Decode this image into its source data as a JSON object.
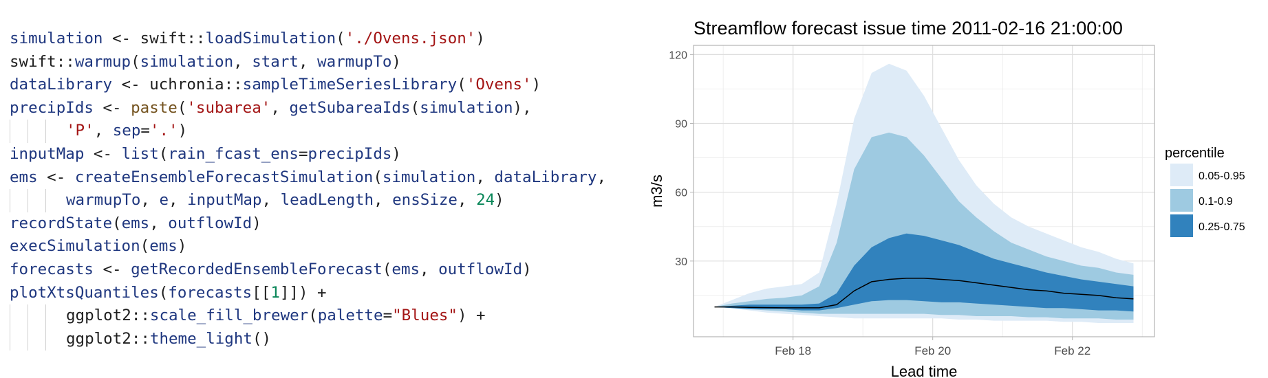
{
  "code": {
    "lines": [
      {
        "indent": false,
        "tokens": [
          {
            "t": "simulation",
            "c": "id"
          },
          {
            "t": " <- ",
            "c": "op"
          },
          {
            "t": "swift",
            "c": "pkg"
          },
          {
            "t": "::",
            "c": "op"
          },
          {
            "t": "loadSimulation",
            "c": "id"
          },
          {
            "t": "(",
            "c": "punc"
          },
          {
            "t": "'./Ovens.json'",
            "c": "str"
          },
          {
            "t": ")",
            "c": "punc"
          }
        ]
      },
      {
        "indent": false,
        "tokens": [
          {
            "t": "swift",
            "c": "pkg"
          },
          {
            "t": "::",
            "c": "op"
          },
          {
            "t": "warmup",
            "c": "id"
          },
          {
            "t": "(",
            "c": "punc"
          },
          {
            "t": "simulation",
            "c": "id"
          },
          {
            "t": ", ",
            "c": "punc"
          },
          {
            "t": "start",
            "c": "id"
          },
          {
            "t": ", ",
            "c": "punc"
          },
          {
            "t": "warmupTo",
            "c": "id"
          },
          {
            "t": ")",
            "c": "punc"
          }
        ]
      },
      {
        "indent": false,
        "tokens": [
          {
            "t": "dataLibrary",
            "c": "id"
          },
          {
            "t": " <- ",
            "c": "op"
          },
          {
            "t": "uchronia",
            "c": "pkg"
          },
          {
            "t": "::",
            "c": "op"
          },
          {
            "t": "sampleTimeSeriesLibrary",
            "c": "id"
          },
          {
            "t": "(",
            "c": "punc"
          },
          {
            "t": "'Ovens'",
            "c": "str"
          },
          {
            "t": ")",
            "c": "punc"
          }
        ]
      },
      {
        "indent": false,
        "tokens": [
          {
            "t": "precipIds",
            "c": "id"
          },
          {
            "t": " <- ",
            "c": "op"
          },
          {
            "t": "paste",
            "c": "fn"
          },
          {
            "t": "(",
            "c": "punc"
          },
          {
            "t": "'subarea'",
            "c": "str"
          },
          {
            "t": ", ",
            "c": "punc"
          },
          {
            "t": "getSubareaIds",
            "c": "id"
          },
          {
            "t": "(",
            "c": "punc"
          },
          {
            "t": "simulation",
            "c": "id"
          },
          {
            "t": "),",
            "c": "punc"
          }
        ]
      },
      {
        "indent": true,
        "tokens": [
          {
            "t": "'P'",
            "c": "str"
          },
          {
            "t": ", ",
            "c": "punc"
          },
          {
            "t": "sep",
            "c": "id"
          },
          {
            "t": "=",
            "c": "op"
          },
          {
            "t": "'.'",
            "c": "str"
          },
          {
            "t": ")",
            "c": "punc"
          }
        ]
      },
      {
        "indent": false,
        "tokens": [
          {
            "t": "inputMap",
            "c": "id"
          },
          {
            "t": " <- ",
            "c": "op"
          },
          {
            "t": "list",
            "c": "id"
          },
          {
            "t": "(",
            "c": "punc"
          },
          {
            "t": "rain_fcast_ens",
            "c": "id"
          },
          {
            "t": "=",
            "c": "op"
          },
          {
            "t": "precipIds",
            "c": "id"
          },
          {
            "t": ")",
            "c": "punc"
          }
        ]
      },
      {
        "indent": false,
        "tokens": [
          {
            "t": "ems",
            "c": "id"
          },
          {
            "t": " <- ",
            "c": "op"
          },
          {
            "t": "createEnsembleForecastSimulation",
            "c": "id"
          },
          {
            "t": "(",
            "c": "punc"
          },
          {
            "t": "simulation",
            "c": "id"
          },
          {
            "t": ", ",
            "c": "punc"
          },
          {
            "t": "dataLibrary",
            "c": "id"
          },
          {
            "t": ",",
            "c": "punc"
          }
        ]
      },
      {
        "indent": true,
        "tokens": [
          {
            "t": "warmupTo",
            "c": "id"
          },
          {
            "t": ", ",
            "c": "punc"
          },
          {
            "t": "e",
            "c": "id"
          },
          {
            "t": ", ",
            "c": "punc"
          },
          {
            "t": "inputMap",
            "c": "id"
          },
          {
            "t": ", ",
            "c": "punc"
          },
          {
            "t": "leadLength",
            "c": "id"
          },
          {
            "t": ", ",
            "c": "punc"
          },
          {
            "t": "ensSize",
            "c": "id"
          },
          {
            "t": ", ",
            "c": "punc"
          },
          {
            "t": "24",
            "c": "num"
          },
          {
            "t": ")",
            "c": "punc"
          }
        ]
      },
      {
        "indent": false,
        "tokens": [
          {
            "t": "recordState",
            "c": "id"
          },
          {
            "t": "(",
            "c": "punc"
          },
          {
            "t": "ems",
            "c": "id"
          },
          {
            "t": ", ",
            "c": "punc"
          },
          {
            "t": "outflowId",
            "c": "id"
          },
          {
            "t": ")",
            "c": "punc"
          }
        ]
      },
      {
        "indent": false,
        "tokens": [
          {
            "t": "execSimulation",
            "c": "id"
          },
          {
            "t": "(",
            "c": "punc"
          },
          {
            "t": "ems",
            "c": "id"
          },
          {
            "t": ")",
            "c": "punc"
          }
        ]
      },
      {
        "indent": false,
        "tokens": [
          {
            "t": "forecasts",
            "c": "id"
          },
          {
            "t": " <- ",
            "c": "op"
          },
          {
            "t": "getRecordedEnsembleForecast",
            "c": "id"
          },
          {
            "t": "(",
            "c": "punc"
          },
          {
            "t": "ems",
            "c": "id"
          },
          {
            "t": ", ",
            "c": "punc"
          },
          {
            "t": "outflowId",
            "c": "id"
          },
          {
            "t": ")",
            "c": "punc"
          }
        ]
      },
      {
        "indent": false,
        "tokens": [
          {
            "t": "plotXtsQuantiles",
            "c": "id"
          },
          {
            "t": "(",
            "c": "punc"
          },
          {
            "t": "forecasts",
            "c": "id"
          },
          {
            "t": "[[",
            "c": "punc"
          },
          {
            "t": "1",
            "c": "num"
          },
          {
            "t": "]])",
            "c": "punc"
          },
          {
            "t": " +",
            "c": "op"
          }
        ]
      },
      {
        "indent": true,
        "tokens": [
          {
            "t": "ggplot2",
            "c": "pkg"
          },
          {
            "t": "::",
            "c": "op"
          },
          {
            "t": "scale_fill_brewer",
            "c": "id"
          },
          {
            "t": "(",
            "c": "punc"
          },
          {
            "t": "palette",
            "c": "id"
          },
          {
            "t": "=",
            "c": "op"
          },
          {
            "t": "\"Blues\"",
            "c": "str"
          },
          {
            "t": ")",
            "c": "punc"
          },
          {
            "t": " +",
            "c": "op"
          }
        ]
      },
      {
        "indent": true,
        "tokens": [
          {
            "t": "ggplot2",
            "c": "pkg"
          },
          {
            "t": "::",
            "c": "op"
          },
          {
            "t": "theme_light",
            "c": "id"
          },
          {
            "t": "()",
            "c": "punc"
          }
        ]
      }
    ]
  },
  "colors": {
    "band_outer": "#deebf7",
    "band_mid": "#9ecae1",
    "band_inner": "#3182bd",
    "median": "#000000",
    "grid": "#ebebeb",
    "panel_border": "#b3b3b3"
  },
  "chart_data": {
    "type": "area",
    "title": "Streamflow forecast issue time  2011-02-16 21:00:00",
    "xlabel": "Lead time",
    "ylabel": "m3/s",
    "legend_title": "percentile",
    "legend_position": "right",
    "grid": true,
    "x_unit": "days since 2011-02-16 21:00",
    "xlim": [
      -0.3,
      6.3
    ],
    "ylim": [
      -3,
      124
    ],
    "x_ticks": [
      {
        "label": "Feb 18",
        "value": 1.125
      },
      {
        "label": "Feb 20",
        "value": 3.125
      },
      {
        "label": "Feb 22",
        "value": 5.125
      }
    ],
    "y_ticks": [
      30,
      60,
      90,
      120
    ],
    "x": [
      0,
      0.25,
      0.5,
      0.75,
      1,
      1.25,
      1.5,
      1.75,
      2,
      2.25,
      2.5,
      2.75,
      3,
      3.25,
      3.5,
      3.75,
      4,
      4.25,
      4.5,
      4.75,
      5,
      5.25,
      5.5,
      5.75,
      6
    ],
    "series": [
      {
        "name": "0.05-0.95",
        "lower": [
          10,
          9.5,
          8.5,
          7.5,
          7,
          6.5,
          6,
          5.5,
          5,
          5,
          5,
          5,
          5,
          5,
          4.5,
          4.5,
          4,
          4,
          4,
          4,
          3.5,
          3.5,
          3,
          3,
          3
        ],
        "upper": [
          10,
          13,
          16,
          18,
          19,
          20,
          25,
          55,
          92,
          112,
          116,
          113,
          102,
          88,
          74,
          63,
          55,
          49,
          45,
          42,
          39,
          36,
          34,
          31,
          29
        ]
      },
      {
        "name": "0.1-0.9",
        "lower": [
          10,
          9.5,
          9,
          8.5,
          8,
          7.5,
          7,
          7,
          7,
          7,
          7,
          7,
          7,
          6.5,
          6.5,
          6,
          6,
          6,
          5.5,
          5.5,
          5,
          5,
          5,
          4.5,
          4.5
        ],
        "upper": [
          10,
          11.5,
          12.5,
          13.5,
          14,
          15,
          19,
          38,
          70,
          84,
          86,
          84,
          76,
          66,
          56,
          49,
          43,
          38,
          35,
          32,
          30,
          28,
          27,
          25,
          24
        ]
      },
      {
        "name": "0.25-0.75",
        "lower": [
          10,
          9.5,
          9,
          9,
          9,
          8.5,
          8.5,
          9.5,
          11,
          12.5,
          13,
          13,
          12.5,
          12,
          12,
          11.5,
          11,
          10.5,
          10,
          9.5,
          9.5,
          9,
          8.5,
          8.5,
          8
        ]
      },
      {
        "name": "median",
        "values": [
          10,
          10,
          9.8,
          9.7,
          9.6,
          9.6,
          9.6,
          11,
          17,
          21,
          22,
          22.5,
          22.5,
          22,
          21.5,
          20.5,
          19.5,
          18.5,
          17.5,
          17,
          16,
          15.5,
          15,
          14,
          13.5
        ]
      }
    ],
    "inner_upper": [
      10,
      10.5,
      11,
      11,
      11,
      11,
      11.5,
      16,
      28,
      36,
      40,
      42,
      41,
      39,
      37,
      34,
      31,
      29,
      27,
      25,
      23.5,
      22,
      21,
      20,
      19
    ]
  }
}
